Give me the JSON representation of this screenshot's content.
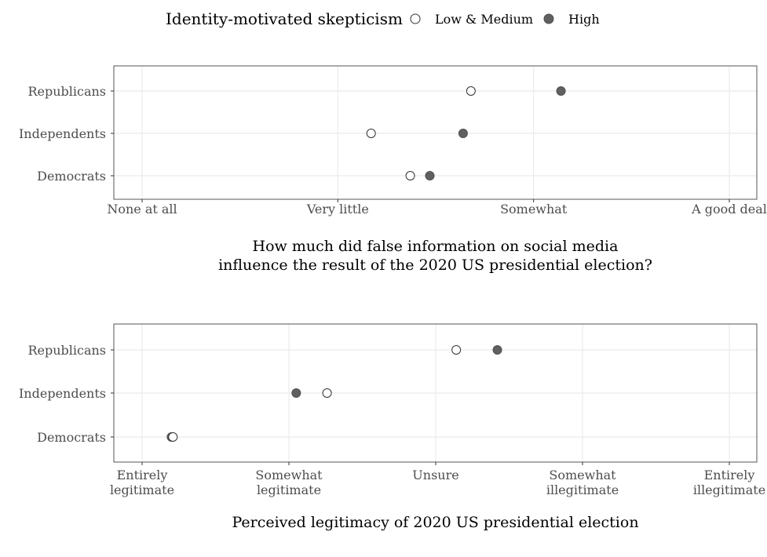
{
  "legend": {
    "title": "Identity-motivated skepticism",
    "items": [
      {
        "label": "Low & Medium",
        "fill": "#ffffff",
        "stroke": "#333333"
      },
      {
        "label": "High",
        "fill": "#606060",
        "stroke": "#505050"
      }
    ],
    "placement": "top"
  },
  "chart_data": [
    {
      "type": "scatter",
      "title": "",
      "xlabel": [
        "How much did false information on social media",
        "influence the result of the 2020 US presidential election?"
      ],
      "ylabel": "",
      "x_ticks": [
        [
          "None at all"
        ],
        [
          "Very little"
        ],
        [
          "Somewhat"
        ],
        [
          "A good deal"
        ]
      ],
      "xlim": [
        1,
        4
      ],
      "categories": [
        "Republicans",
        "Independents",
        "Democrats"
      ],
      "grid": true,
      "series": [
        {
          "name": "Low & Medium",
          "values": [
            2.68,
            2.17,
            2.37
          ]
        },
        {
          "name": "High",
          "values": [
            3.14,
            2.64,
            2.47
          ]
        }
      ]
    },
    {
      "type": "scatter",
      "title": "",
      "xlabel": [
        "Perceived legitimacy of 2020 US presidential election"
      ],
      "ylabel": "",
      "x_ticks": [
        [
          "Entirely",
          "legitimate"
        ],
        [
          "Somewhat",
          "legitimate"
        ],
        [
          "Unsure"
        ],
        [
          "Somewhat",
          "illegitimate"
        ],
        [
          "Entirely",
          "illegitimate"
        ]
      ],
      "xlim": [
        1,
        5
      ],
      "categories": [
        "Republicans",
        "Independents",
        "Democrats"
      ],
      "grid": true,
      "series": [
        {
          "name": "Low & Medium",
          "values": [
            3.14,
            2.26,
            1.21
          ]
        },
        {
          "name": "High",
          "values": [
            3.42,
            2.05,
            1.2
          ]
        }
      ]
    }
  ]
}
